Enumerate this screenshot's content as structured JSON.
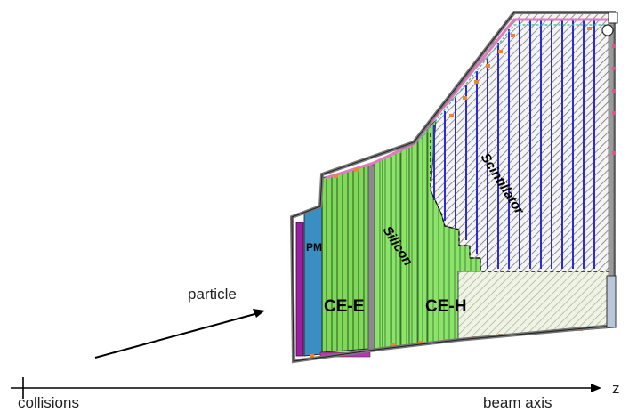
{
  "labels": {
    "particle": "particle",
    "collisions": "collisions",
    "beam_axis": "beam axis",
    "z": "z",
    "pm": "PM",
    "ce_e": "CE-E",
    "ce_h": "CE-H",
    "silicon": "Silicon",
    "scintillator": "Scintillator"
  },
  "colors": {
    "ce_e_green": "#7fd85a",
    "ce_h_green": "#8be46a",
    "pm_blue": "#3a8fc2",
    "magenta": "#9b1fa0",
    "scint_blue": "#2a2ad8",
    "frame_gray": "#8a8a8a",
    "hatch": "#555555"
  }
}
